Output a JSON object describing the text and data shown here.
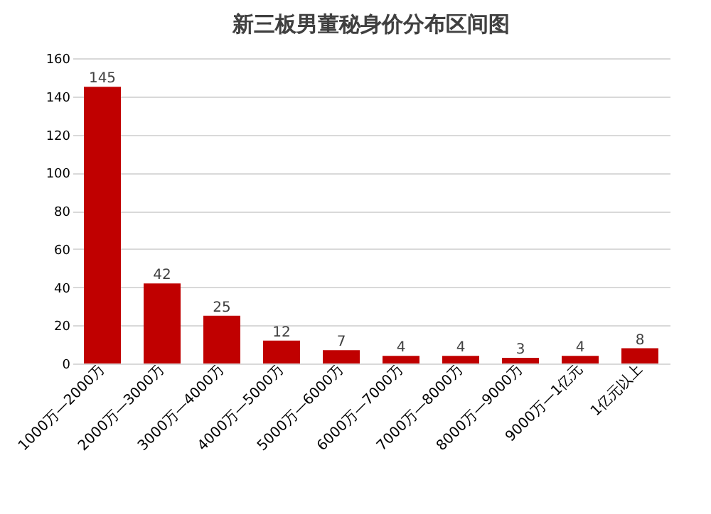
{
  "chart_data": {
    "type": "bar",
    "title": "新三板男董秘身价分布区间图",
    "categories": [
      "1000万—2000万",
      "2000万—3000万",
      "3000万—4000万",
      "4000万—5000万",
      "5000万—6000万",
      "6000万—7000万",
      "7000万—8000万",
      "8000万—9000万",
      "9000万—1亿元",
      "1亿元以上"
    ],
    "values": [
      145,
      42,
      25,
      12,
      7,
      4,
      4,
      3,
      4,
      8
    ],
    "color": "#c00000",
    "ylim": [
      0,
      160
    ],
    "yticks": [
      0,
      20,
      40,
      60,
      80,
      100,
      120,
      140,
      160
    ],
    "grid": "y",
    "data_labels": true
  }
}
